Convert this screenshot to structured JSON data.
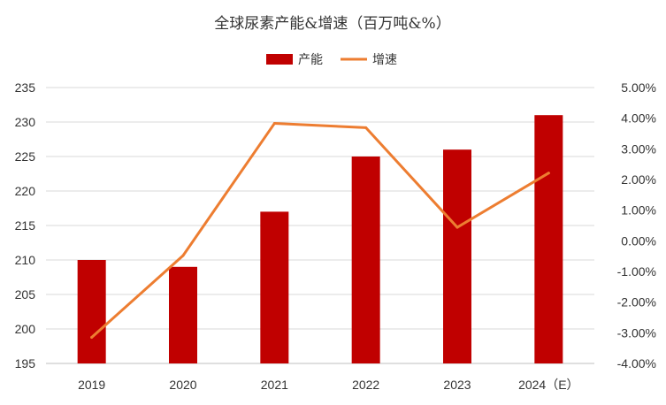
{
  "chart_data": {
    "type": "bar",
    "title": "全球尿素产能&增速（百万吨&%）",
    "categories": [
      "2019",
      "2020",
      "2021",
      "2022",
      "2023",
      "2024（E）"
    ],
    "series": [
      {
        "name": "产能",
        "type": "bar",
        "axis": "left",
        "color": "#c00000",
        "values": [
          210,
          209,
          217,
          225,
          226,
          231
        ]
      },
      {
        "name": "增速",
        "type": "line",
        "axis": "right",
        "color": "#ed7d31",
        "values": [
          -3.15,
          -0.48,
          3.83,
          3.69,
          0.44,
          2.21
        ]
      }
    ],
    "y_left": {
      "min": 195,
      "max": 235,
      "step": 5,
      "ticks": [
        "195",
        "200",
        "205",
        "210",
        "215",
        "220",
        "225",
        "230",
        "235"
      ]
    },
    "y_right": {
      "min": -4,
      "max": 5,
      "step": 1,
      "ticks": [
        "-4.00%",
        "-3.00%",
        "-2.00%",
        "-1.00%",
        "0.00%",
        "1.00%",
        "2.00%",
        "3.00%",
        "4.00%",
        "5.00%"
      ]
    },
    "legend_position": "top-center",
    "grid": true
  }
}
